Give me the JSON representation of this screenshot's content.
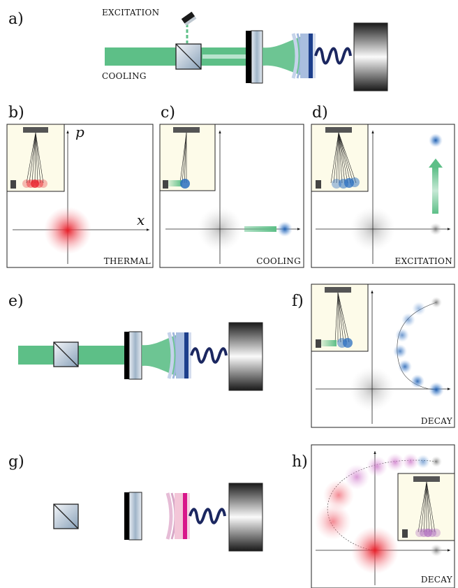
{
  "panel_labels": {
    "a": "a)",
    "b": "b)",
    "c": "c)",
    "d": "d)",
    "e": "e)",
    "f": "f)",
    "g": "g)",
    "h": "h)"
  },
  "setup_labels": {
    "excitation": "EXCITATION",
    "cooling": "COOLING"
  },
  "axis_labels": {
    "x": "x",
    "p": "p"
  },
  "state_captions": {
    "b": "THERMAL",
    "c": "COOLING",
    "d": "EXCITATION",
    "f": "DECAY",
    "h": "DECAY"
  },
  "colors": {
    "laser": "#5dbf87",
    "thermal": "#e8202a",
    "cooled": "#2a6fc0",
    "inset_bg": "#fdfbe9",
    "gray": "#888888",
    "mirror": "#000000",
    "magenta": "#d8178a",
    "purple": "#b070c0"
  }
}
